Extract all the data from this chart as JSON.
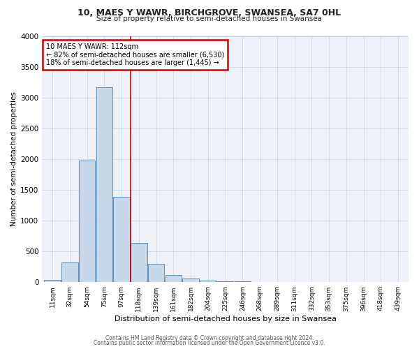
{
  "title1": "10, MAES Y WAWR, BIRCHGROVE, SWANSEA, SA7 0HL",
  "title2": "Size of property relative to semi-detached houses in Swansea",
  "xlabel": "Distribution of semi-detached houses by size in Swansea",
  "ylabel": "Number of semi-detached properties",
  "categories": [
    "11sqm",
    "32sqm",
    "54sqm",
    "75sqm",
    "97sqm",
    "118sqm",
    "139sqm",
    "161sqm",
    "182sqm",
    "204sqm",
    "225sqm",
    "246sqm",
    "268sqm",
    "289sqm",
    "311sqm",
    "332sqm",
    "353sqm",
    "375sqm",
    "396sqm",
    "418sqm",
    "439sqm"
  ],
  "values": [
    40,
    320,
    1980,
    3170,
    1390,
    640,
    300,
    120,
    60,
    30,
    15,
    10,
    5,
    3,
    2,
    0,
    0,
    0,
    0,
    0,
    0
  ],
  "bar_color": "#c9d9ea",
  "bar_edge_color": "#5b8db8",
  "property_line_index": 5,
  "property_line_label": "10 MAES Y WAWR: 112sqm",
  "annotation_line1": "← 82% of semi-detached houses are smaller (6,530)",
  "annotation_line2": "18% of semi-detached houses are larger (1,445) →",
  "annotation_box_color": "#ffffff",
  "annotation_box_edge": "#cc0000",
  "line_color": "#cc0000",
  "ylim": [
    0,
    4000
  ],
  "yticks": [
    0,
    500,
    1000,
    1500,
    2000,
    2500,
    3000,
    3500,
    4000
  ],
  "footer1": "Contains HM Land Registry data © Crown copyright and database right 2024.",
  "footer2": "Contains public sector information licensed under the Open Government Licence v3.0.",
  "bg_color": "#eef2f8",
  "grid_color": "#c8d4e4"
}
